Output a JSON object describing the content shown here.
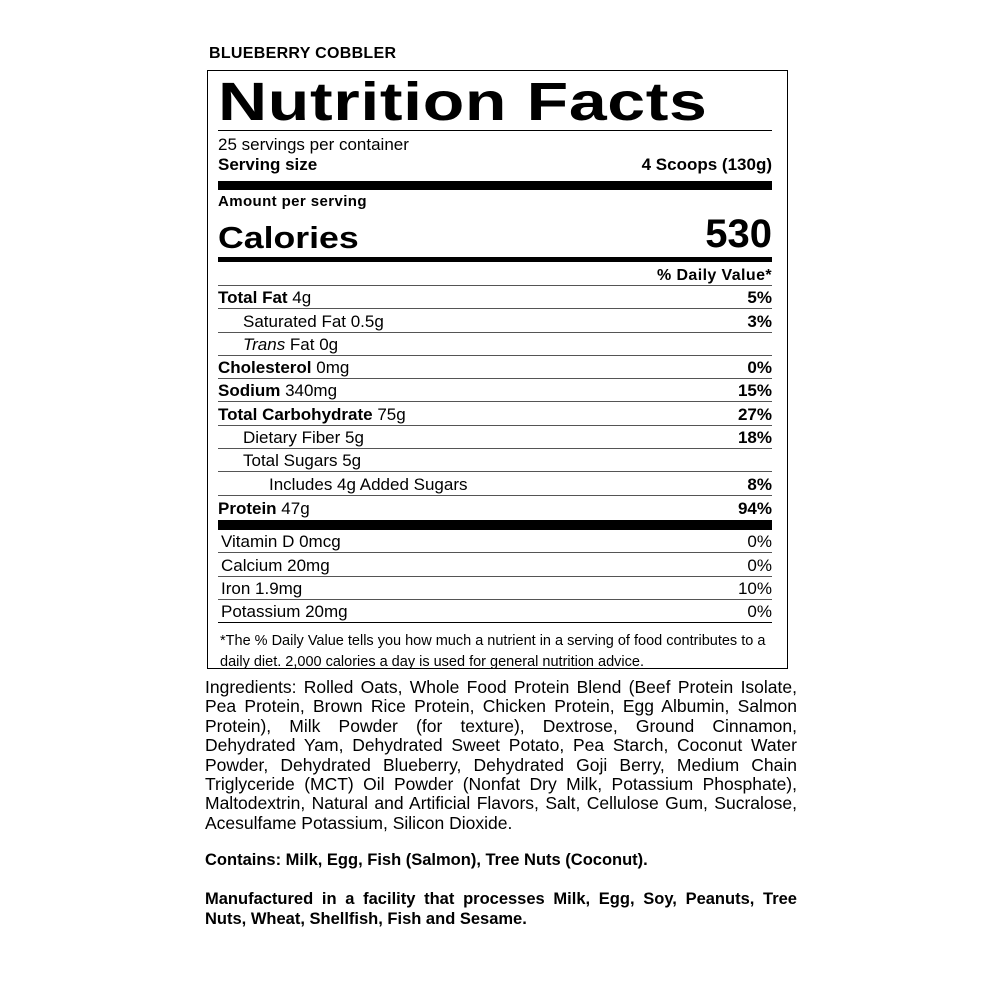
{
  "flavor": "BLUEBERRY COBBLER",
  "label": {
    "title": "Nutrition Facts",
    "servings": "25 servings per container",
    "serving_size_label": "Serving size",
    "serving_size_value": "4 Scoops (130g)",
    "amount_per_serving": "Amount per serving",
    "calories_label": "Calories",
    "calories_value": "530",
    "dv_header": "% Daily Value*",
    "nutrients": [
      {
        "name": "Total Fat",
        "amount": " 4g",
        "dv": "5%"
      },
      {
        "name": "Saturated Fat 0.5g",
        "dv": "3%"
      },
      {
        "name": "Trans",
        "amount": " Fat 0g",
        "dv": ""
      },
      {
        "name": "Cholesterol",
        "amount": " 0mg",
        "dv": "0%"
      },
      {
        "name": "Sodium",
        "amount": " 340mg",
        "dv": "15%"
      },
      {
        "name": "Total Carbohydrate",
        "amount": " 75g",
        "dv": "27%"
      },
      {
        "name": "Dietary Fiber 5g",
        "dv": "18%"
      },
      {
        "name": "Total Sugars 5g",
        "dv": ""
      },
      {
        "name": "Includes 4g Added Sugars",
        "dv": "8%"
      },
      {
        "name": "Protein",
        "amount": " 47g",
        "dv": "94%"
      }
    ],
    "vitamins": [
      {
        "name": "Vitamin D 0mcg",
        "dv": "0%"
      },
      {
        "name": "Calcium 20mg",
        "dv": "0%"
      },
      {
        "name": "Iron 1.9mg",
        "dv": "10%"
      },
      {
        "name": "Potassium 20mg",
        "dv": "0%"
      }
    ],
    "footnote": "*The % Daily Value tells you how much a nutrient in a serving of food contributes to a daily diet. 2,000 calories a day is used for general nutrition advice."
  },
  "ingredients": "Ingredients: Rolled Oats, Whole Food Protein Blend (Beef Protein Isolate, Pea Protein, Brown Rice Protein, Chicken Protein, Egg Albumin, Salmon Protein), Milk Powder (for texture), Dextrose, Ground Cinnamon, Dehydrated Yam, Dehydrated Sweet Potato, Pea Starch, Coconut Water Powder, Dehydrated Blueberry, Dehydrated Goji Berry, Medium Chain Triglyceride (MCT) Oil Powder (Nonfat Dry Milk, Potassium Phosphate), Maltodextrin, Natural and Artificial Flavors, Salt, Cellulose Gum, Sucralose, Acesulfame Potassium, Silicon Dioxide.",
  "contains": "Contains: Milk, Egg, Fish (Salmon), Tree Nuts (Coconut).",
  "manufactured": "Manufactured in a facility that processes Milk, Egg, Soy, Peanuts, Tree Nuts, Wheat, Shellfish, Fish and Sesame."
}
